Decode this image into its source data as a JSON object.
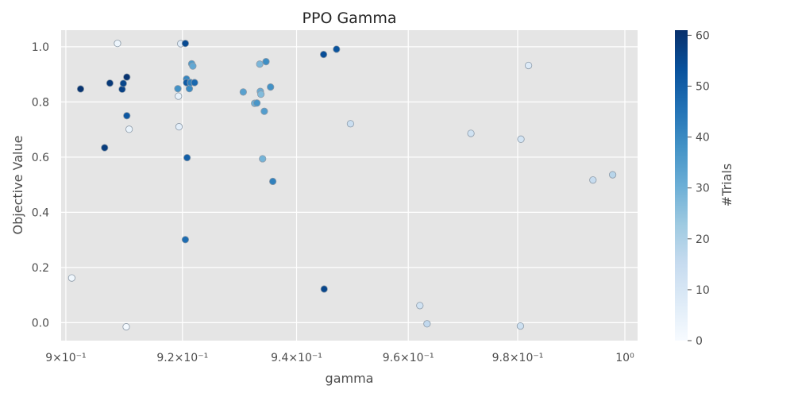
{
  "chart_data": {
    "type": "scatter",
    "title": "PPO Gamma",
    "xlabel": "gamma",
    "ylabel": "Objective Value",
    "xscale": "log",
    "xlim": [
      0.8992,
      1.0024
    ],
    "ylim": [
      -0.065,
      1.06
    ],
    "x_ticks": [
      {
        "value": 0.9,
        "label": "9×10⁻¹"
      },
      {
        "value": 0.92,
        "label": "9.2×10⁻¹"
      },
      {
        "value": 0.94,
        "label": "9.4×10⁻¹"
      },
      {
        "value": 0.96,
        "label": "9.6×10⁻¹"
      },
      {
        "value": 0.98,
        "label": "9.8×10⁻¹"
      },
      {
        "value": 1.0,
        "label": "10⁰"
      }
    ],
    "y_ticks": [
      {
        "value": 0.0,
        "label": "0.0"
      },
      {
        "value": 0.2,
        "label": "0.2"
      },
      {
        "value": 0.4,
        "label": "0.4"
      },
      {
        "value": 0.6,
        "label": "0.6"
      },
      {
        "value": 0.8,
        "label": "0.8"
      },
      {
        "value": 1.0,
        "label": "1.0"
      }
    ],
    "grid": true,
    "colorbar": {
      "label": "#Trials",
      "min": 0,
      "max": 61,
      "ticks": [
        0,
        10,
        20,
        30,
        40,
        50,
        60
      ],
      "colormap": "Blues"
    },
    "points": [
      {
        "x": 0.901,
        "y": 0.162,
        "trial": 2
      },
      {
        "x": 0.9025,
        "y": 0.847,
        "trial": 60
      },
      {
        "x": 0.9066,
        "y": 0.634,
        "trial": 58
      },
      {
        "x": 0.9075,
        "y": 0.868,
        "trial": 59
      },
      {
        "x": 0.9088,
        "y": 1.012,
        "trial": 3
      },
      {
        "x": 0.9096,
        "y": 0.846,
        "trial": 57
      },
      {
        "x": 0.9098,
        "y": 0.867,
        "trial": 56
      },
      {
        "x": 0.9104,
        "y": 0.89,
        "trial": 60
      },
      {
        "x": 0.9104,
        "y": 0.75,
        "trial": 52
      },
      {
        "x": 0.9103,
        "y": -0.015,
        "trial": 1
      },
      {
        "x": 0.9108,
        "y": 0.701,
        "trial": 4
      },
      {
        "x": 0.9192,
        "y": 0.848,
        "trial": 38
      },
      {
        "x": 0.9193,
        "y": 0.821,
        "trial": 5
      },
      {
        "x": 0.9194,
        "y": 0.71,
        "trial": 6
      },
      {
        "x": 0.9197,
        "y": 1.011,
        "trial": 7
      },
      {
        "x": 0.9205,
        "y": 1.012,
        "trial": 55
      },
      {
        "x": 0.9207,
        "y": 0.883,
        "trial": 41
      },
      {
        "x": 0.9207,
        "y": 0.87,
        "trial": 51
      },
      {
        "x": 0.9208,
        "y": 0.598,
        "trial": 50
      },
      {
        "x": 0.9205,
        "y": 0.301,
        "trial": 47
      },
      {
        "x": 0.9212,
        "y": 0.848,
        "trial": 40
      },
      {
        "x": 0.9214,
        "y": 0.87,
        "trial": 43
      },
      {
        "x": 0.9216,
        "y": 0.938,
        "trial": 36
      },
      {
        "x": 0.9218,
        "y": 0.93,
        "trial": 32
      },
      {
        "x": 0.9221,
        "y": 0.87,
        "trial": 48
      },
      {
        "x": 0.9306,
        "y": 0.836,
        "trial": 34
      },
      {
        "x": 0.9326,
        "y": 0.795,
        "trial": 30
      },
      {
        "x": 0.933,
        "y": 0.796,
        "trial": 37
      },
      {
        "x": 0.9335,
        "y": 0.937,
        "trial": 28
      },
      {
        "x": 0.9336,
        "y": 0.838,
        "trial": 31
      },
      {
        "x": 0.9337,
        "y": 0.828,
        "trial": 27
      },
      {
        "x": 0.934,
        "y": 0.594,
        "trial": 29
      },
      {
        "x": 0.9343,
        "y": 0.766,
        "trial": 35
      },
      {
        "x": 0.9346,
        "y": 0.946,
        "trial": 39
      },
      {
        "x": 0.9354,
        "y": 0.854,
        "trial": 38
      },
      {
        "x": 0.9358,
        "y": 0.512,
        "trial": 42
      },
      {
        "x": 0.9448,
        "y": 0.972,
        "trial": 54
      },
      {
        "x": 0.9449,
        "y": 0.122,
        "trial": 56
      },
      {
        "x": 0.9471,
        "y": 0.991,
        "trial": 53
      },
      {
        "x": 0.9496,
        "y": 0.721,
        "trial": 14
      },
      {
        "x": 0.9621,
        "y": 0.062,
        "trial": 12
      },
      {
        "x": 0.9634,
        "y": -0.004,
        "trial": 16
      },
      {
        "x": 0.9714,
        "y": 0.686,
        "trial": 12
      },
      {
        "x": 0.9806,
        "y": 0.665,
        "trial": 11
      },
      {
        "x": 0.9805,
        "y": -0.012,
        "trial": 13
      },
      {
        "x": 0.982,
        "y": 0.932,
        "trial": 8
      },
      {
        "x": 0.994,
        "y": 0.517,
        "trial": 15
      },
      {
        "x": 0.9977,
        "y": 0.536,
        "trial": 18
      }
    ]
  }
}
